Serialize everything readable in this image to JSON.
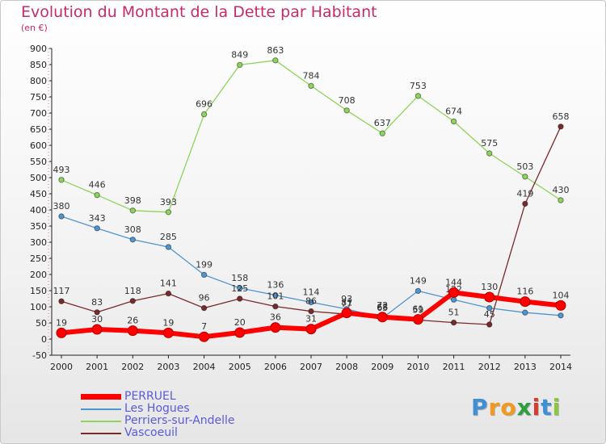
{
  "header": {
    "title": "Evolution du Montant de la Dette par Habitant",
    "subtitle": "(en €)"
  },
  "brand": {
    "logo_text": "Proxiti",
    "letter_colors": [
      "#3e8fd6",
      "#f39a1e",
      "#f39a1e",
      "#2f9e3f",
      "#d83a2e",
      "#3e8fd6",
      "#8cc63f"
    ]
  },
  "chart_data": {
    "type": "line",
    "title": "Evolution du Montant de la Dette par Habitant",
    "subtitle": "(en €)",
    "xlabel": "",
    "ylabel": "",
    "x": [
      2000,
      2001,
      2002,
      2003,
      2004,
      2005,
      2006,
      2007,
      2008,
      2009,
      2010,
      2011,
      2012,
      2013,
      2014
    ],
    "ylim": [
      -50,
      900
    ],
    "yticks": [
      -50,
      0,
      50,
      100,
      150,
      200,
      250,
      300,
      350,
      400,
      450,
      500,
      550,
      600,
      650,
      700,
      750,
      800,
      850,
      900
    ],
    "grid": false,
    "legend_position": "bottom-left",
    "series": [
      {
        "name": "PERRUEL",
        "color": "#ff0000",
        "emphasis": true,
        "values": [
          19,
          30,
          26,
          19,
          7,
          20,
          36,
          31,
          81,
          68,
          61,
          144,
          130,
          116,
          104
        ]
      },
      {
        "name": "Les Hogues",
        "color": "#4f95cf",
        "emphasis": false,
        "values": [
          380,
          343,
          308,
          285,
          199,
          158,
          136,
          114,
          93,
          65,
          149,
          122,
          96,
          82,
          73
        ]
      },
      {
        "name": "Perriers-sur-Andelle",
        "color": "#8ed45b",
        "emphasis": false,
        "values": [
          493,
          446,
          398,
          393,
          696,
          849,
          863,
          784,
          708,
          637,
          753,
          674,
          575,
          503,
          430
        ]
      },
      {
        "name": "Vascoeuil",
        "color": "#7a2a2a",
        "emphasis": false,
        "values": [
          117,
          83,
          118,
          141,
          96,
          125,
          101,
          86,
          77,
          72,
          59,
          51,
          45,
          419,
          658
        ]
      }
    ]
  }
}
